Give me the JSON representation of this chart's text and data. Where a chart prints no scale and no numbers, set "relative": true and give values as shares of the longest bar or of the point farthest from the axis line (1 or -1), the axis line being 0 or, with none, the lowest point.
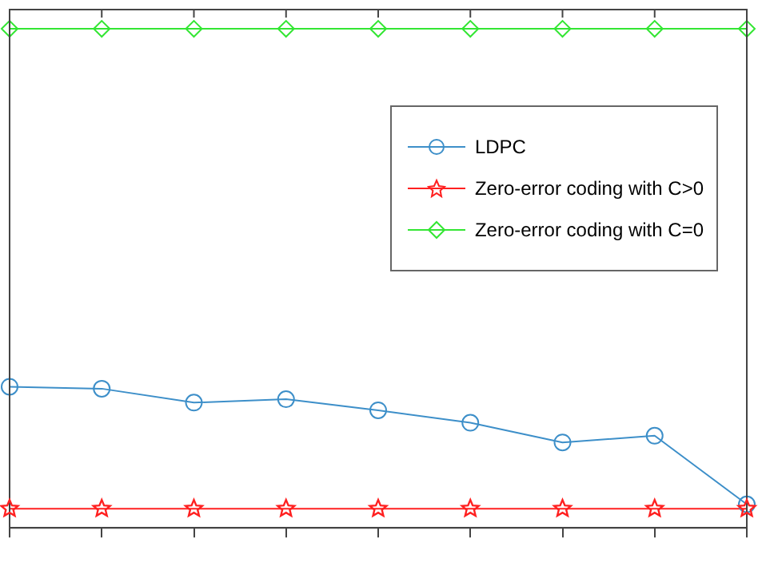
{
  "chart_data": {
    "type": "line",
    "relative": true,
    "categories": [
      null,
      null,
      null,
      null,
      null,
      null,
      null,
      null,
      null
    ],
    "series": [
      {
        "name": "LDPC",
        "color": "#3d8fc9",
        "marker": "circle",
        "values": [
          0.254,
          0.25,
          0.221,
          0.228,
          0.205,
          0.179,
          0.138,
          0.152,
          0.009
        ]
      },
      {
        "name": "Zero-error coding with C>0",
        "color": "#ff2020",
        "marker": "star",
        "values": [
          0,
          0,
          0,
          0,
          0,
          0,
          0,
          0,
          0
        ]
      },
      {
        "name": "Zero-error coding with C=0",
        "color": "#33e633",
        "marker": "diamond",
        "values": [
          1,
          1,
          1,
          1,
          1,
          1,
          1,
          1,
          1
        ]
      }
    ],
    "legend": "right",
    "grid": false
  }
}
